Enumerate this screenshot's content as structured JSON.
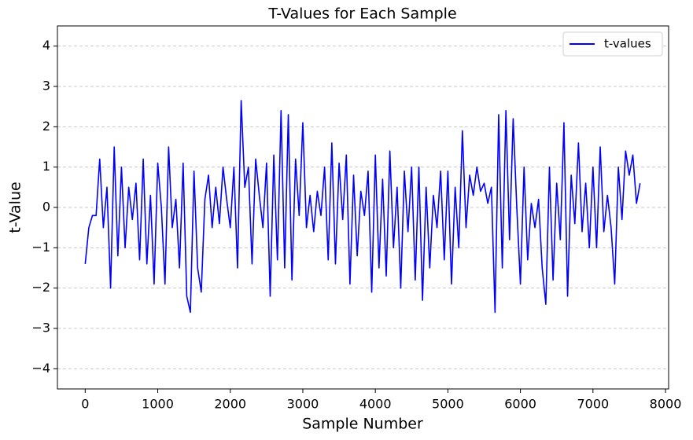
{
  "chart_data": {
    "type": "line",
    "title": "T-Values for Each Sample",
    "xlabel": "Sample Number",
    "ylabel": "t-Value",
    "x": [
      0,
      50,
      100,
      150,
      200,
      250,
      300,
      350,
      400,
      450,
      500,
      550,
      600,
      650,
      700,
      750,
      800,
      850,
      900,
      950,
      1000,
      1050,
      1100,
      1150,
      1200,
      1250,
      1300,
      1350,
      1400,
      1450,
      1500,
      1550,
      1600,
      1650,
      1700,
      1750,
      1800,
      1850,
      1900,
      1950,
      2000,
      2050,
      2100,
      2150,
      2200,
      2250,
      2300,
      2350,
      2400,
      2450,
      2500,
      2550,
      2600,
      2650,
      2700,
      2750,
      2800,
      2850,
      2900,
      2950,
      3000,
      3050,
      3100,
      3150,
      3200,
      3250,
      3300,
      3350,
      3400,
      3450,
      3500,
      3550,
      3600,
      3650,
      3700,
      3750,
      3800,
      3850,
      3900,
      3950,
      4000,
      4050,
      4100,
      4150,
      4200,
      4250,
      4300,
      4350,
      4400,
      4450,
      4500,
      4550,
      4600,
      4650,
      4700,
      4750,
      4800,
      4850,
      4900,
      4950,
      5000,
      5050,
      5100,
      5150,
      5200,
      5250,
      5300,
      5350,
      5400,
      5450,
      5500,
      5550,
      5600,
      5650,
      5700,
      5750,
      5800,
      5850,
      5900,
      5950,
      6000,
      6050,
      6100,
      6150,
      6200,
      6250,
      6300,
      6350,
      6400,
      6450,
      6500,
      6550,
      6600,
      6650,
      6700,
      6750,
      6800,
      6850,
      6900,
      6950,
      7000,
      7050,
      7100,
      7150,
      7200,
      7250,
      7300,
      7350,
      7400,
      7450,
      7500,
      7550,
      7600,
      7650
    ],
    "series": [
      {
        "name": "t-values",
        "color": "#0000ff",
        "values": [
          -1.4,
          -0.5,
          -0.2,
          -0.2,
          1.2,
          -0.5,
          0.5,
          -2.0,
          1.5,
          -1.2,
          1.0,
          -1.0,
          0.5,
          -0.3,
          0.6,
          -1.3,
          1.2,
          -1.4,
          0.3,
          -1.9,
          1.1,
          0.0,
          -1.9,
          1.5,
          -0.5,
          0.2,
          -1.5,
          1.1,
          -2.2,
          -2.6,
          0.9,
          -1.5,
          -2.1,
          0.2,
          0.8,
          -0.5,
          0.5,
          -0.4,
          1.0,
          0.2,
          -0.5,
          1.0,
          -1.5,
          2.65,
          0.5,
          1.0,
          -1.4,
          1.2,
          0.3,
          -0.5,
          1.1,
          -2.2,
          1.3,
          -1.3,
          2.4,
          -1.5,
          2.3,
          -1.8,
          1.2,
          -0.2,
          2.1,
          -0.5,
          0.3,
          -0.6,
          0.4,
          -0.2,
          1.0,
          -1.3,
          1.6,
          -1.4,
          1.1,
          -0.3,
          1.3,
          -1.9,
          0.8,
          -1.2,
          0.4,
          -0.2,
          0.9,
          -2.1,
          1.3,
          -1.5,
          0.7,
          -1.7,
          1.4,
          -1.0,
          0.5,
          -2.0,
          0.9,
          -0.6,
          1.0,
          -1.8,
          1.0,
          -2.3,
          0.5,
          -1.5,
          0.3,
          -0.5,
          0.9,
          -1.3,
          0.9,
          -1.9,
          0.5,
          -1.0,
          1.9,
          -0.5,
          0.8,
          0.3,
          1.0,
          0.4,
          0.6,
          0.1,
          0.5,
          -2.6,
          2.3,
          -1.5,
          2.4,
          -0.8,
          2.2,
          0.0,
          -1.9,
          1.0,
          -1.3,
          0.1,
          -0.5,
          0.2,
          -1.5,
          -2.4,
          1.0,
          -1.8,
          0.6,
          -0.8,
          2.1,
          -2.2,
          0.8,
          -0.4,
          1.6,
          -0.6,
          0.6,
          -1.0,
          1.0,
          -1.0,
          1.5,
          -0.6,
          0.3,
          -0.5,
          -1.9,
          1.0,
          -0.3,
          1.4,
          0.8,
          1.3,
          0.1,
          0.6
        ]
      }
    ],
    "xlim": [
      -383,
      8043
    ],
    "ylim": [
      -4.5,
      4.5
    ],
    "xticks": [
      0,
      1000,
      2000,
      3000,
      4000,
      5000,
      6000,
      7000,
      8000
    ],
    "yticks": [
      {
        "value": -4,
        "label": "−4"
      },
      {
        "value": -3,
        "label": "−3"
      },
      {
        "value": -2,
        "label": "−2"
      },
      {
        "value": -1,
        "label": "−1"
      },
      0,
      1,
      2,
      3,
      4
    ],
    "grid": true,
    "legend": "upper right"
  }
}
